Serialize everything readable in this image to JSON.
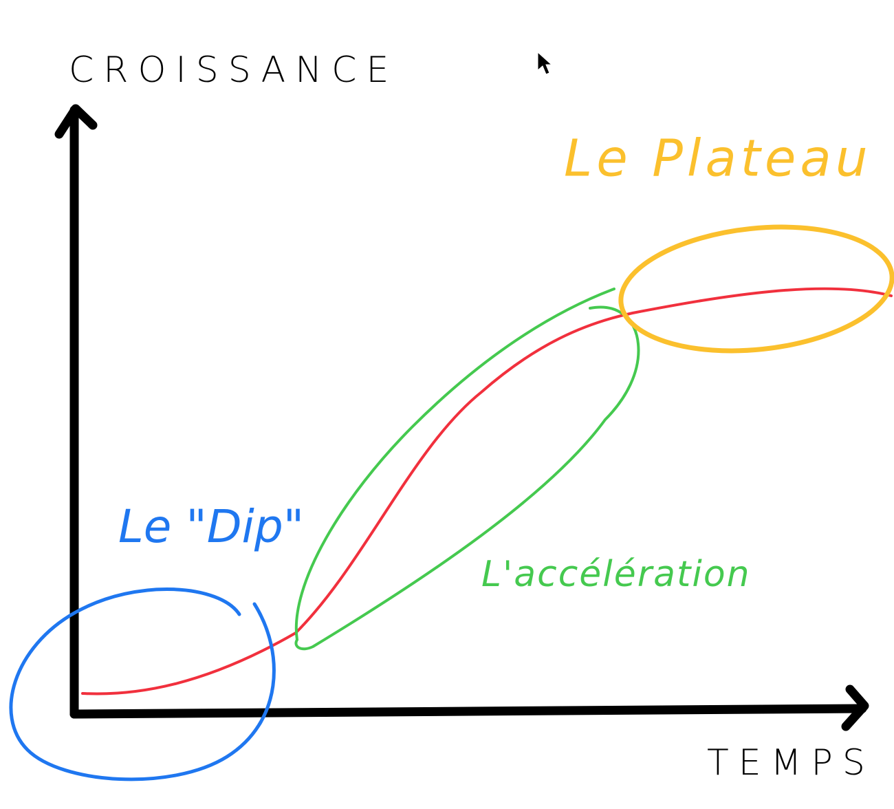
{
  "axes": {
    "y_label": "CROISSANCE",
    "x_label": "TEMPS"
  },
  "annotations": [
    {
      "label": "Le \"Dip\""
    },
    {
      "label": "L'accélération"
    },
    {
      "label": "Le Plateau"
    }
  ]
}
